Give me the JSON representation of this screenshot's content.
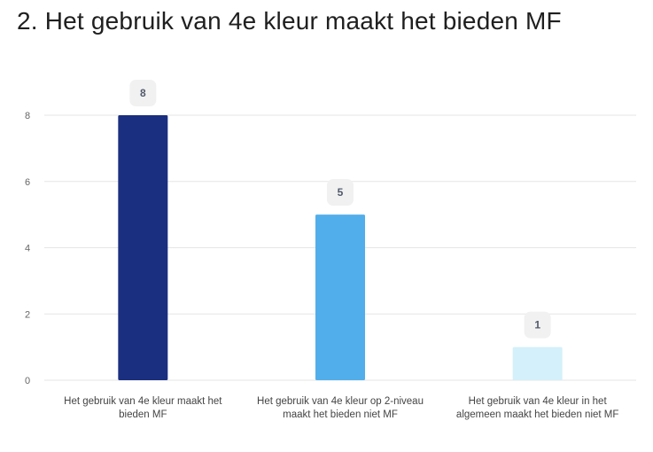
{
  "page": {
    "title": "2. Het gebruik van 4e kleur maakt het bieden MF"
  },
  "chart_data": {
    "type": "bar",
    "title": "2. Het gebruik van 4e kleur maakt het bieden MF",
    "xlabel": "",
    "ylabel": "",
    "ylim": [
      0,
      8
    ],
    "yticks": [
      0,
      2,
      4,
      6,
      8
    ],
    "grid": true,
    "categories": [
      [
        "Het gebruik van 4e kleur maakt het",
        "bieden MF"
      ],
      [
        "Het gebruik van 4e kleur op 2-niveau",
        "maakt het bieden niet MF"
      ],
      [
        "Het gebruik van 4e kleur in het",
        "algemeen maakt het bieden niet MF"
      ]
    ],
    "values": [
      8,
      5,
      1
    ],
    "data_labels": [
      "8",
      "5",
      "1"
    ],
    "colors": [
      "#1b2f80",
      "#52aeea",
      "#d4f0fa"
    ]
  }
}
